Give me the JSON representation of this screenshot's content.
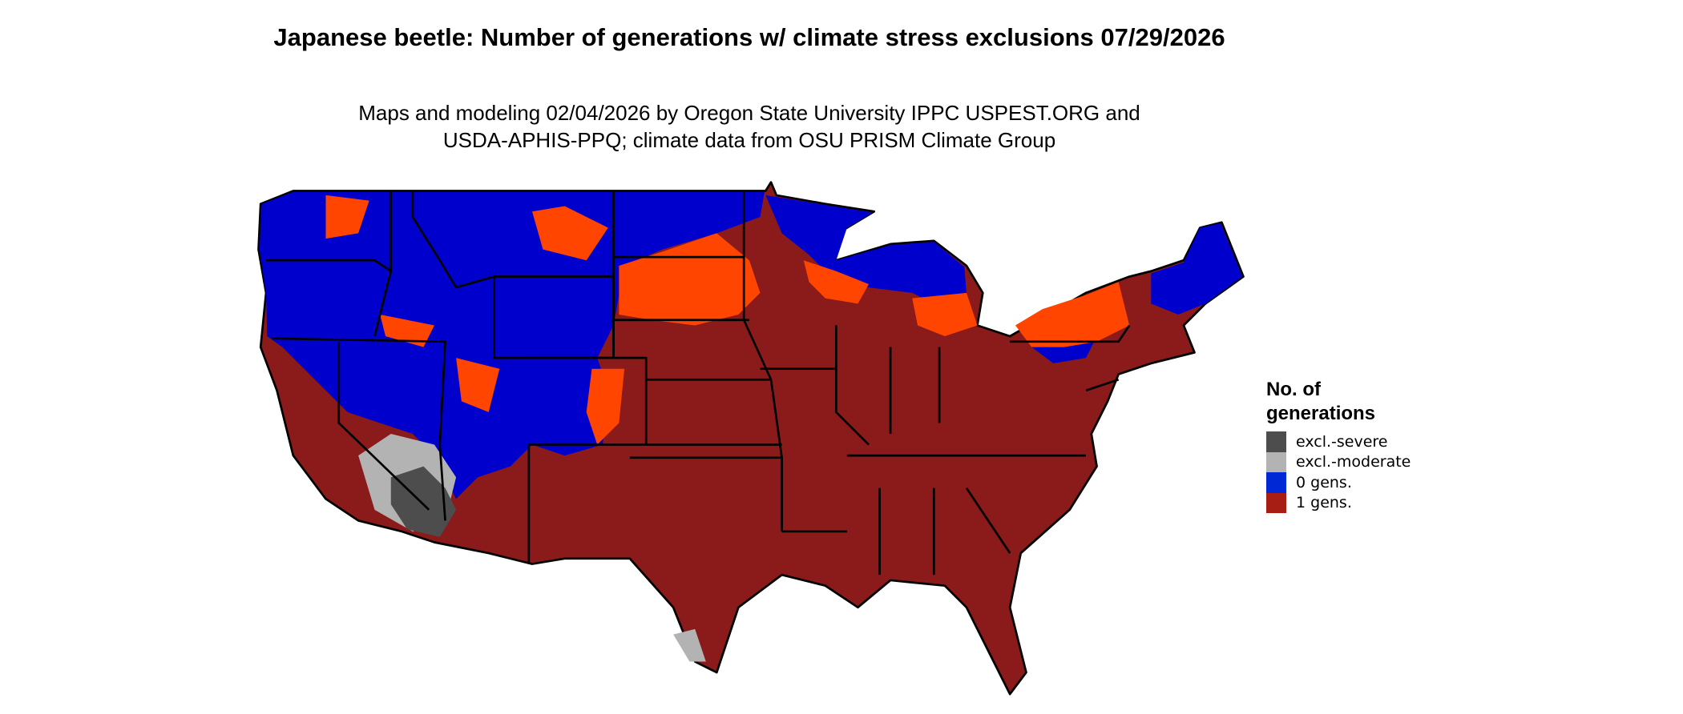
{
  "title": "Japanese beetle: Number of generations w/ climate stress exclusions 07/29/2026",
  "subtitle_line1": "Maps and modeling 02/04/2026 by Oregon State University IPPC USPEST.ORG and",
  "subtitle_line2": "USDA-APHIS-PPQ; climate data from OSU PRISM Climate Group",
  "legend": {
    "title": "No. of generations",
    "items": [
      {
        "label": "excl.-severe",
        "color": "#4d4d4d"
      },
      {
        "label": "excl.-moderate",
        "color": "#b3b3b3"
      },
      {
        "label": "0 gens.",
        "color": "#0029d6"
      },
      {
        "label": "1 gens.",
        "color": "#a61e14"
      }
    ]
  },
  "map_colors": {
    "one_gen": "#8b1a1a",
    "zero_gen": "#0000cd",
    "transition": "#ff4500",
    "severe": "#4d4d4d",
    "moderate": "#b3b3b3"
  }
}
